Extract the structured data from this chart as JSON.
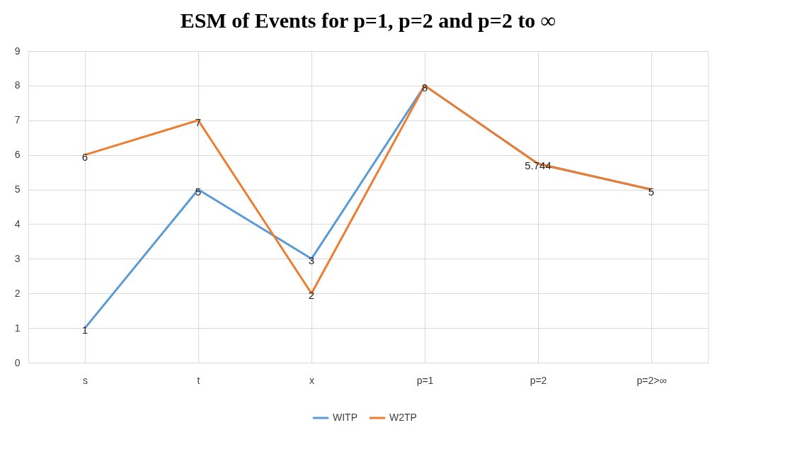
{
  "chart_data": {
    "type": "line",
    "title": "ESM of Events for p=1, p=2 and p=2 to ∞",
    "categories": [
      "s",
      "t",
      "x",
      "p=1",
      "p=2",
      "p=2>∞"
    ],
    "series": [
      {
        "name": "WITP",
        "color": "#5b9bd5",
        "values": [
          1,
          5,
          3,
          8,
          5.744,
          5
        ],
        "value_labels": [
          "1",
          "5",
          "3",
          "8",
          "5.744",
          "5"
        ]
      },
      {
        "name": "W2TP",
        "color": "#ed7d31",
        "values": [
          6,
          7,
          2,
          8,
          5.744,
          5
        ],
        "value_labels": [
          "6",
          "7",
          "2",
          null,
          null,
          null
        ]
      }
    ],
    "ylim": [
      0,
      9
    ],
    "yticks": [
      0,
      1,
      2,
      3,
      4,
      5,
      6,
      7,
      8,
      9
    ],
    "grid": true,
    "legend": "bottom",
    "line_style": "solid"
  }
}
